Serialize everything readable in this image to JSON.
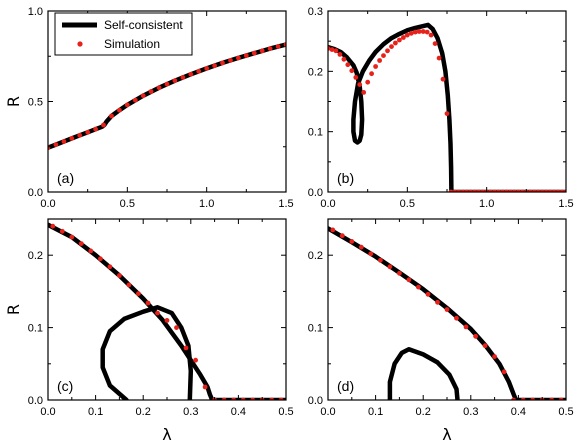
{
  "chart_data": {
    "type": "scatter",
    "legend": {
      "placement": "top-left of panel (a)",
      "entries": [
        {
          "name": "Self-consistent",
          "style": "line",
          "color": "#000000"
        },
        {
          "name": "Simulation",
          "style": "marker",
          "color": "#e8211b"
        }
      ]
    },
    "axis_labels": {
      "y": "R",
      "x": "λ"
    },
    "panels": [
      {
        "label": "(a)",
        "xlim": [
          0,
          1.5
        ],
        "ylim": [
          0,
          1.0
        ],
        "xticks": [
          0,
          0.5,
          1.0,
          1.5
        ],
        "xtick_labels": [
          "0.0",
          "0.5",
          "1.0",
          "1.5"
        ],
        "yticks": [
          0,
          0.5,
          1.0
        ],
        "ytick_labels": [
          "0.0",
          "0.5",
          "1.0"
        ],
        "show_ylabel": true,
        "show_xlabel": false,
        "lines": [
          [
            [
              0,
              0.245
            ],
            [
              0.05,
              0.262
            ],
            [
              0.1,
              0.279
            ],
            [
              0.15,
              0.296
            ],
            [
              0.2,
              0.313
            ],
            [
              0.25,
              0.33
            ],
            [
              0.3,
              0.347
            ],
            [
              0.34,
              0.36
            ],
            [
              0.355,
              0.37
            ],
            [
              0.37,
              0.39
            ],
            [
              0.4,
              0.42
            ],
            [
              0.45,
              0.452
            ],
            [
              0.5,
              0.481
            ],
            [
              0.6,
              0.532
            ],
            [
              0.7,
              0.576
            ],
            [
              0.8,
              0.615
            ],
            [
              0.9,
              0.65
            ],
            [
              1.0,
              0.683
            ],
            [
              1.1,
              0.713
            ],
            [
              1.2,
              0.741
            ],
            [
              1.3,
              0.767
            ],
            [
              1.4,
              0.792
            ],
            [
              1.5,
              0.815
            ]
          ]
        ],
        "points": [
          [
            0,
            0.245
          ],
          [
            0.05,
            0.262
          ],
          [
            0.1,
            0.279
          ],
          [
            0.15,
            0.296
          ],
          [
            0.2,
            0.313
          ],
          [
            0.25,
            0.33
          ],
          [
            0.3,
            0.347
          ],
          [
            0.35,
            0.37
          ],
          [
            0.4,
            0.42
          ],
          [
            0.45,
            0.452
          ],
          [
            0.5,
            0.481
          ],
          [
            0.55,
            0.507
          ],
          [
            0.6,
            0.532
          ],
          [
            0.65,
            0.555
          ],
          [
            0.7,
            0.576
          ],
          [
            0.75,
            0.596
          ],
          [
            0.8,
            0.615
          ],
          [
            0.85,
            0.633
          ],
          [
            0.9,
            0.65
          ],
          [
            0.95,
            0.667
          ],
          [
            1.0,
            0.683
          ],
          [
            1.05,
            0.698
          ],
          [
            1.1,
            0.713
          ],
          [
            1.15,
            0.727
          ],
          [
            1.2,
            0.741
          ],
          [
            1.25,
            0.754
          ],
          [
            1.3,
            0.767
          ],
          [
            1.35,
            0.78
          ],
          [
            1.4,
            0.792
          ],
          [
            1.45,
            0.804
          ],
          [
            1.5,
            0.815
          ]
        ]
      },
      {
        "label": "(b)",
        "xlim": [
          0,
          1.5
        ],
        "ylim": [
          0,
          0.3
        ],
        "xticks": [
          0,
          0.5,
          1.0,
          1.5
        ],
        "xtick_labels": [
          "0.0",
          "0.5",
          "1.0",
          "1.5"
        ],
        "yticks": [
          0,
          0.1,
          0.2,
          0.3
        ],
        "ytick_labels": [
          "0.0",
          "0.1",
          "0.2",
          "0.3"
        ],
        "show_ylabel": false,
        "show_xlabel": false,
        "lines": [
          [
            [
              0,
              0.24
            ],
            [
              0.04,
              0.237
            ],
            [
              0.08,
              0.232
            ],
            [
              0.12,
              0.223
            ],
            [
              0.16,
              0.21
            ],
            [
              0.18,
              0.198
            ],
            [
              0.2,
              0.175
            ],
            [
              0.21,
              0.15
            ],
            [
              0.215,
              0.12
            ],
            [
              0.21,
              0.095
            ],
            [
              0.2,
              0.085
            ],
            [
              0.185,
              0.082
            ],
            [
              0.17,
              0.085
            ],
            [
              0.16,
              0.1
            ],
            [
              0.16,
              0.12
            ],
            [
              0.17,
              0.15
            ],
            [
              0.19,
              0.18
            ],
            [
              0.22,
              0.2
            ],
            [
              0.26,
              0.218
            ],
            [
              0.3,
              0.232
            ],
            [
              0.35,
              0.245
            ],
            [
              0.4,
              0.255
            ],
            [
              0.45,
              0.262
            ],
            [
              0.5,
              0.268
            ],
            [
              0.55,
              0.272
            ],
            [
              0.6,
              0.275
            ],
            [
              0.63,
              0.277
            ],
            [
              0.66,
              0.27
            ],
            [
              0.69,
              0.255
            ],
            [
              0.72,
              0.23
            ],
            [
              0.74,
              0.2
            ],
            [
              0.755,
              0.16
            ],
            [
              0.765,
              0.12
            ],
            [
              0.772,
              0.08
            ],
            [
              0.776,
              0.04
            ],
            [
              0.778,
              0
            ],
            [
              1.5,
              0
            ]
          ]
        ],
        "points": [
          [
            0,
            0.238
          ],
          [
            0.025,
            0.236
          ],
          [
            0.05,
            0.234
          ],
          [
            0.075,
            0.228
          ],
          [
            0.1,
            0.22
          ],
          [
            0.125,
            0.211
          ],
          [
            0.15,
            0.201
          ],
          [
            0.175,
            0.19
          ],
          [
            0.2,
            0.178
          ],
          [
            0.225,
            0.165
          ],
          [
            0.25,
            0.182
          ],
          [
            0.275,
            0.196
          ],
          [
            0.3,
            0.208
          ],
          [
            0.325,
            0.218
          ],
          [
            0.35,
            0.226
          ],
          [
            0.375,
            0.234
          ],
          [
            0.4,
            0.241
          ],
          [
            0.425,
            0.247
          ],
          [
            0.45,
            0.252
          ],
          [
            0.475,
            0.256
          ],
          [
            0.5,
            0.26
          ],
          [
            0.525,
            0.263
          ],
          [
            0.55,
            0.265
          ],
          [
            0.575,
            0.266
          ],
          [
            0.6,
            0.266
          ],
          [
            0.625,
            0.265
          ],
          [
            0.65,
            0.26
          ],
          [
            0.675,
            0.246
          ],
          [
            0.7,
            0.222
          ],
          [
            0.725,
            0.187
          ],
          [
            0.75,
            0.13
          ],
          [
            0.775,
            0
          ],
          [
            0.8,
            0
          ],
          [
            0.825,
            0
          ],
          [
            0.85,
            0
          ],
          [
            0.875,
            0
          ],
          [
            0.9,
            0
          ],
          [
            0.925,
            0
          ],
          [
            0.95,
            0
          ],
          [
            0.975,
            0
          ],
          [
            1.0,
            0
          ],
          [
            1.025,
            0
          ],
          [
            1.05,
            0
          ],
          [
            1.075,
            0
          ],
          [
            1.1,
            0
          ],
          [
            1.125,
            0
          ],
          [
            1.15,
            0
          ],
          [
            1.175,
            0
          ],
          [
            1.2,
            0
          ],
          [
            1.225,
            0
          ],
          [
            1.25,
            0
          ],
          [
            1.275,
            0
          ],
          [
            1.3,
            0
          ],
          [
            1.325,
            0
          ],
          [
            1.35,
            0
          ],
          [
            1.375,
            0
          ],
          [
            1.4,
            0
          ],
          [
            1.425,
            0
          ],
          [
            1.45,
            0
          ],
          [
            1.475,
            0
          ],
          [
            1.5,
            0
          ]
        ]
      },
      {
        "label": "(c)",
        "xlim": [
          0,
          0.5
        ],
        "ylim": [
          0,
          0.25
        ],
        "xticks": [
          0,
          0.1,
          0.2,
          0.3,
          0.4,
          0.5
        ],
        "xtick_labels": [
          "0.0",
          "0.1",
          "0.2",
          "0.3",
          "0.4",
          "0.5"
        ],
        "yticks": [
          0,
          0.1,
          0.2
        ],
        "ytick_labels": [
          "0.0",
          "0.1",
          "0.2"
        ],
        "show_ylabel": true,
        "show_xlabel": true,
        "lines": [
          [
            [
              0,
              0.242
            ],
            [
              0.05,
              0.225
            ],
            [
              0.1,
              0.2
            ],
            [
              0.15,
              0.172
            ],
            [
              0.2,
              0.14
            ],
            [
              0.24,
              0.111
            ],
            [
              0.28,
              0.075
            ],
            [
              0.3,
              0.055
            ],
            [
              0.32,
              0.035
            ],
            [
              0.335,
              0.018
            ],
            [
              0.34,
              0.008
            ],
            [
              0.345,
              0
            ],
            [
              0.5,
              0
            ]
          ],
          [
            [
              0.165,
              0
            ],
            [
              0.13,
              0.02
            ],
            [
              0.115,
              0.045
            ],
            [
              0.115,
              0.07
            ],
            [
              0.13,
              0.095
            ],
            [
              0.16,
              0.112
            ],
            [
              0.2,
              0.122
            ],
            [
              0.23,
              0.128
            ],
            [
              0.26,
              0.12
            ],
            [
              0.28,
              0.1
            ],
            [
              0.295,
              0.075
            ],
            [
              0.3,
              0.04
            ],
            [
              0.298,
              0
            ]
          ]
        ],
        "points": [
          [
            0.01,
            0.24
          ],
          [
            0.03,
            0.233
          ],
          [
            0.05,
            0.225
          ],
          [
            0.07,
            0.216
          ],
          [
            0.09,
            0.206
          ],
          [
            0.11,
            0.195
          ],
          [
            0.13,
            0.184
          ],
          [
            0.15,
            0.172
          ],
          [
            0.17,
            0.159
          ],
          [
            0.19,
            0.147
          ],
          [
            0.21,
            0.134
          ],
          [
            0.23,
            0.12
          ],
          [
            0.25,
            0.11
          ],
          [
            0.27,
            0.1
          ],
          [
            0.29,
            0.072
          ],
          [
            0.31,
            0.055
          ],
          [
            0.33,
            0.018
          ],
          [
            0.35,
            0
          ],
          [
            0.37,
            0
          ],
          [
            0.39,
            0
          ],
          [
            0.41,
            0
          ],
          [
            0.43,
            0
          ],
          [
            0.45,
            0
          ],
          [
            0.47,
            0
          ],
          [
            0.49,
            0
          ]
        ]
      },
      {
        "label": "(d)",
        "xlim": [
          0,
          0.5
        ],
        "ylim": [
          0,
          0.25
        ],
        "xticks": [
          0,
          0.1,
          0.2,
          0.3,
          0.4,
          0.5
        ],
        "xtick_labels": [
          "0.0",
          "0.1",
          "0.2",
          "0.3",
          "0.4",
          "0.5"
        ],
        "yticks": [
          0,
          0.1,
          0.2
        ],
        "ytick_labels": [
          "0.0",
          "0.1",
          "0.2"
        ],
        "show_ylabel": false,
        "show_xlabel": true,
        "lines": [
          [
            [
              0,
              0.237
            ],
            [
              0.05,
              0.218
            ],
            [
              0.1,
              0.198
            ],
            [
              0.15,
              0.176
            ],
            [
              0.2,
              0.153
            ],
            [
              0.25,
              0.127
            ],
            [
              0.3,
              0.098
            ],
            [
              0.33,
              0.076
            ],
            [
              0.36,
              0.05
            ],
            [
              0.38,
              0.025
            ],
            [
              0.39,
              0.008
            ],
            [
              0.395,
              0
            ],
            [
              0.5,
              0
            ]
          ],
          [
            [
              0.13,
              0
            ],
            [
              0.13,
              0.025
            ],
            [
              0.14,
              0.05
            ],
            [
              0.155,
              0.065
            ],
            [
              0.17,
              0.07
            ],
            [
              0.2,
              0.063
            ],
            [
              0.23,
              0.052
            ],
            [
              0.255,
              0.035
            ],
            [
              0.27,
              0.015
            ],
            [
              0.272,
              0
            ]
          ]
        ],
        "points": [
          [
            0.01,
            0.235
          ],
          [
            0.03,
            0.227
          ],
          [
            0.05,
            0.219
          ],
          [
            0.07,
            0.211
          ],
          [
            0.09,
            0.202
          ],
          [
            0.11,
            0.193
          ],
          [
            0.13,
            0.184
          ],
          [
            0.15,
            0.175
          ],
          [
            0.17,
            0.166
          ],
          [
            0.19,
            0.156
          ],
          [
            0.21,
            0.146
          ],
          [
            0.23,
            0.135
          ],
          [
            0.25,
            0.125
          ],
          [
            0.27,
            0.113
          ],
          [
            0.29,
            0.101
          ],
          [
            0.31,
            0.088
          ],
          [
            0.33,
            0.075
          ],
          [
            0.35,
            0.06
          ],
          [
            0.37,
            0.039
          ],
          [
            0.39,
            0
          ],
          [
            0.41,
            0
          ],
          [
            0.43,
            0
          ],
          [
            0.45,
            0
          ],
          [
            0.47,
            0
          ],
          [
            0.49,
            0
          ]
        ]
      }
    ]
  }
}
